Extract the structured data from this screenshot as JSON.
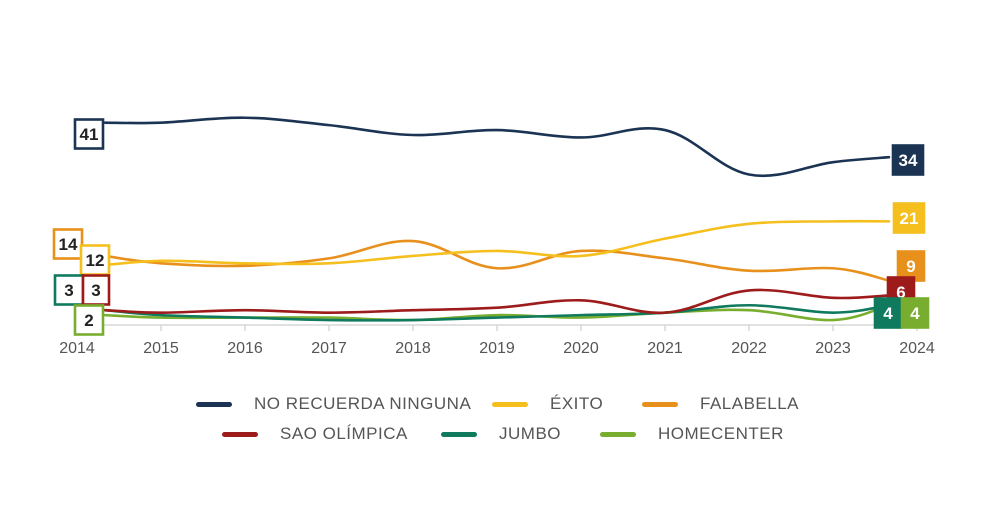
{
  "chart_data": {
    "type": "line",
    "x": [
      2014,
      2015,
      2016,
      2017,
      2018,
      2019,
      2020,
      2021,
      2022,
      2023,
      2024
    ],
    "xlim": [
      2014,
      2024
    ],
    "ylim": [
      0,
      46
    ],
    "grid": false,
    "legend": "bottom",
    "series": [
      {
        "key": "no_recuerda",
        "name": "NO RECUERDA NINGUNA",
        "color": "#1b3454",
        "label_style": "outline",
        "values": [
          41,
          41,
          42,
          40.5,
          38.5,
          39.5,
          38,
          39.5,
          30.5,
          33,
          34
        ],
        "start_label": "41",
        "end_label": "34"
      },
      {
        "key": "exito",
        "name": "ÉXITO",
        "color": "#f5bf1e",
        "label_style": "outline",
        "values": [
          12,
          13,
          12.5,
          12.5,
          14,
          15,
          14,
          17.5,
          20.5,
          21,
          21
        ],
        "start_label": "12",
        "end_label": "21"
      },
      {
        "key": "falabella",
        "name": "FALABELLA",
        "color": "#e8901c",
        "label_style": "outline",
        "values": [
          14,
          12.5,
          12,
          13.5,
          17,
          11.5,
          15,
          13.5,
          11,
          11.5,
          9
        ],
        "start_label": "14",
        "end_label": "9"
      },
      {
        "key": "sao",
        "name": "SAO OLÍMPICA",
        "color": "#9e1b1b",
        "label_style": "outline",
        "values": [
          3,
          2.5,
          3,
          2.5,
          3,
          3.5,
          5,
          2.5,
          7,
          5.5,
          6
        ],
        "start_label": "3",
        "end_label": "6"
      },
      {
        "key": "jumbo",
        "name": "JUMBO",
        "color": "#0f7a5e",
        "label_style": "outline",
        "values": [
          3,
          2,
          1.5,
          1,
          1,
          1.5,
          2,
          2.5,
          4,
          2.5,
          4
        ],
        "start_label": "3",
        "end_label": "4"
      },
      {
        "key": "homecenter",
        "name": "HOMECENTER",
        "color": "#79ad2f",
        "label_style": "outline",
        "values": [
          2,
          1.5,
          1.5,
          1.5,
          1,
          2,
          1.5,
          2.5,
          3,
          1,
          4
        ],
        "start_label": "2",
        "end_label": "4"
      }
    ]
  },
  "legend": {
    "row1": [
      {
        "name": "NO RECUERDA NINGUNA",
        "color": "#1b3454"
      },
      {
        "name": "ÉXITO",
        "color": "#f5bf1e"
      },
      {
        "name": "FALABELLA",
        "color": "#e8901c"
      }
    ],
    "row2": [
      {
        "name": "SAO OLÍMPICA",
        "color": "#9e1b1b"
      },
      {
        "name": "JUMBO",
        "color": "#0f7a5e"
      },
      {
        "name": "HOMECENTER",
        "color": "#79ad2f"
      }
    ]
  }
}
